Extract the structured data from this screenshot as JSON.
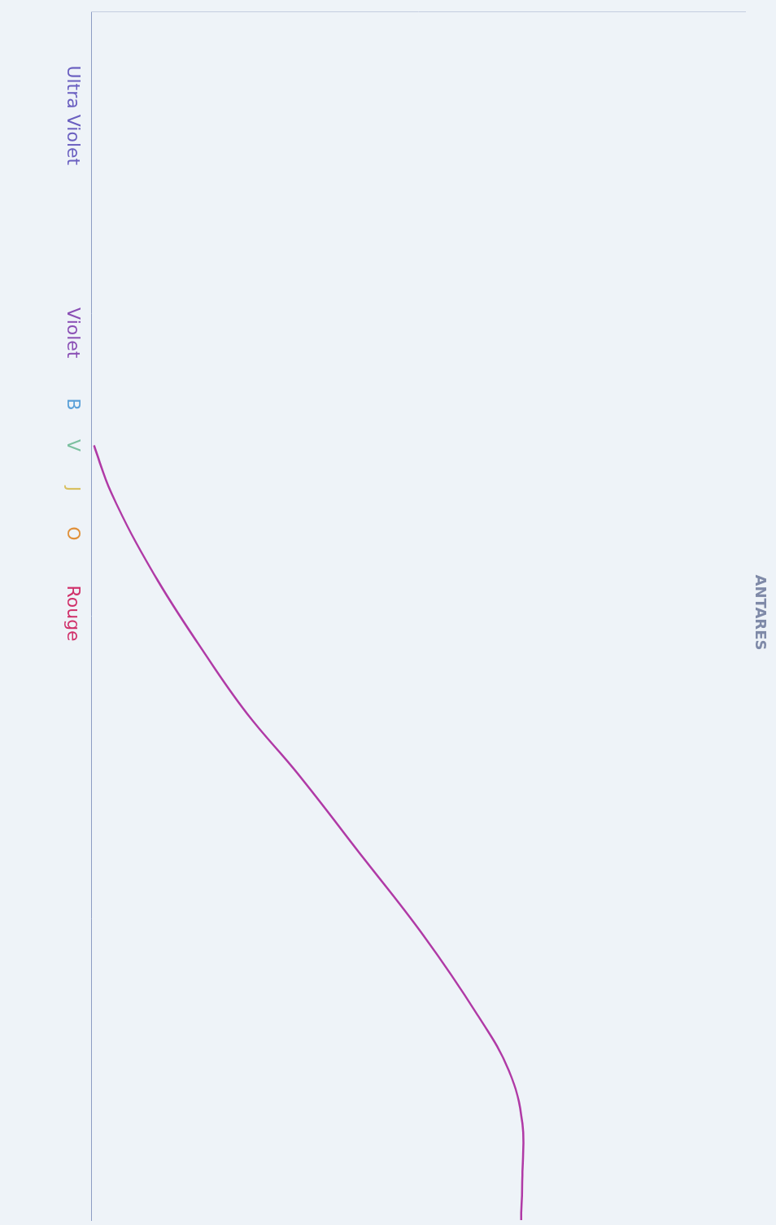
{
  "chart_data": {
    "type": "line",
    "title": "ANTARES",
    "x": [
      35.9,
      39.8,
      46.5,
      53.1,
      58.1,
      63.1,
      69.7,
      76.4,
      83.0,
      87.6,
      92.0,
      96.3,
      100
    ],
    "values": [
      0.4,
      3,
      9.5,
      17.3,
      23.8,
      31.6,
      41.1,
      50.7,
      59,
      63.8,
      65.9,
      65.9,
      65.7
    ],
    "color": "#b03aa6",
    "xlim": [
      0,
      100
    ],
    "xticks": [
      {
        "value": 8.6,
        "label": "Ultra Violet"
      },
      {
        "value": 26.6,
        "label": "Violet"
      },
      {
        "value": 32.5,
        "label": "B"
      },
      {
        "value": 35.9,
        "label": "V"
      },
      {
        "value": 39.5,
        "label": "J"
      },
      {
        "value": 43.2,
        "label": "O"
      },
      {
        "value": 49.8,
        "label": "Rouge"
      }
    ],
    "ylim": [
      0,
      100
    ],
    "grid": false,
    "tick_labels": "x",
    "marker": "none"
  }
}
